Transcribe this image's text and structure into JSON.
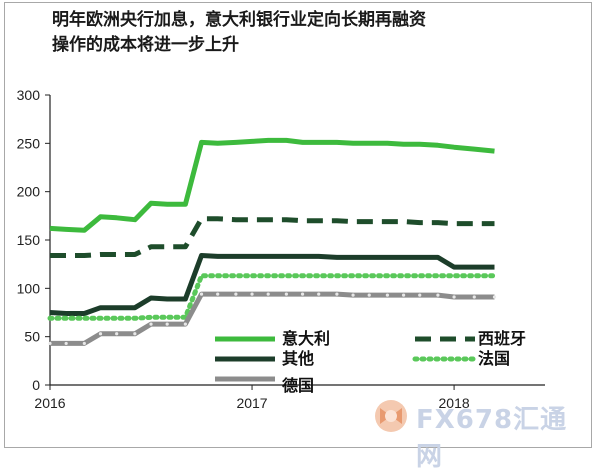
{
  "chart_data": {
    "type": "line",
    "title_lines": [
      "明年欧洲央行加息，意大利银行业定向长期再融资",
      "操作的成本将进一步上升"
    ],
    "xlabel": "",
    "ylabel": "",
    "ylim": [
      0,
      300
    ],
    "y_ticks": [
      0,
      50,
      100,
      150,
      200,
      250,
      300
    ],
    "xlim": [
      2016,
      2018.45
    ],
    "x_ticks": [
      {
        "value": 2016,
        "label": "2016"
      },
      {
        "value": 2017,
        "label": "2017"
      },
      {
        "value": 2018,
        "label": "2018"
      }
    ],
    "grid": false,
    "legend": "bottom-inside",
    "series": [
      {
        "name": "意大利",
        "color": "#3dba3d",
        "style": "solid",
        "points": [
          [
            2016.0,
            162
          ],
          [
            2016.08,
            161
          ],
          [
            2016.17,
            160
          ],
          [
            2016.25,
            174
          ],
          [
            2016.33,
            173
          ],
          [
            2016.42,
            171
          ],
          [
            2016.5,
            188
          ],
          [
            2016.58,
            187
          ],
          [
            2016.67,
            187
          ],
          [
            2016.75,
            251
          ],
          [
            2016.83,
            250
          ],
          [
            2016.92,
            251
          ],
          [
            2017.0,
            252
          ],
          [
            2017.08,
            253
          ],
          [
            2017.17,
            253
          ],
          [
            2017.25,
            251
          ],
          [
            2017.33,
            251
          ],
          [
            2017.42,
            251
          ],
          [
            2017.5,
            250
          ],
          [
            2017.58,
            250
          ],
          [
            2017.67,
            250
          ],
          [
            2017.75,
            249
          ],
          [
            2017.83,
            249
          ],
          [
            2017.92,
            248
          ],
          [
            2018.0,
            246
          ],
          [
            2018.1,
            244
          ],
          [
            2018.2,
            242
          ]
        ]
      },
      {
        "name": "西班牙",
        "color": "#1e4d2b",
        "style": "dashed",
        "points": [
          [
            2016.0,
            134
          ],
          [
            2016.08,
            134
          ],
          [
            2016.17,
            134
          ],
          [
            2016.25,
            135
          ],
          [
            2016.33,
            135
          ],
          [
            2016.42,
            135
          ],
          [
            2016.5,
            143
          ],
          [
            2016.58,
            143
          ],
          [
            2016.67,
            143
          ],
          [
            2016.75,
            172
          ],
          [
            2016.83,
            172
          ],
          [
            2016.92,
            171
          ],
          [
            2017.0,
            171
          ],
          [
            2017.08,
            171
          ],
          [
            2017.17,
            171
          ],
          [
            2017.25,
            170
          ],
          [
            2017.33,
            170
          ],
          [
            2017.42,
            170
          ],
          [
            2017.5,
            169
          ],
          [
            2017.58,
            169
          ],
          [
            2017.67,
            169
          ],
          [
            2017.75,
            169
          ],
          [
            2017.83,
            168
          ],
          [
            2017.92,
            168
          ],
          [
            2018.0,
            167
          ],
          [
            2018.1,
            167
          ],
          [
            2018.2,
            167
          ]
        ]
      },
      {
        "name": "其他",
        "color": "#1c3d2a",
        "style": "solid",
        "points": [
          [
            2016.0,
            75
          ],
          [
            2016.08,
            74
          ],
          [
            2016.17,
            74
          ],
          [
            2016.25,
            80
          ],
          [
            2016.33,
            80
          ],
          [
            2016.42,
            80
          ],
          [
            2016.5,
            90
          ],
          [
            2016.58,
            89
          ],
          [
            2016.67,
            89
          ],
          [
            2016.75,
            134
          ],
          [
            2016.83,
            133
          ],
          [
            2016.92,
            133
          ],
          [
            2017.0,
            133
          ],
          [
            2017.08,
            133
          ],
          [
            2017.17,
            133
          ],
          [
            2017.25,
            133
          ],
          [
            2017.33,
            133
          ],
          [
            2017.42,
            132
          ],
          [
            2017.5,
            132
          ],
          [
            2017.58,
            132
          ],
          [
            2017.67,
            132
          ],
          [
            2017.75,
            132
          ],
          [
            2017.83,
            132
          ],
          [
            2017.92,
            132
          ],
          [
            2018.0,
            122
          ],
          [
            2018.1,
            122
          ],
          [
            2018.2,
            122
          ]
        ]
      },
      {
        "name": "法国",
        "color": "#5ac85a",
        "style": "dotted",
        "points": [
          [
            2016.0,
            69
          ],
          [
            2016.08,
            69
          ],
          [
            2016.17,
            69
          ],
          [
            2016.25,
            69
          ],
          [
            2016.33,
            69
          ],
          [
            2016.42,
            69
          ],
          [
            2016.5,
            70
          ],
          [
            2016.58,
            70
          ],
          [
            2016.67,
            70
          ],
          [
            2016.75,
            113
          ],
          [
            2016.83,
            113
          ],
          [
            2016.92,
            113
          ],
          [
            2017.0,
            113
          ],
          [
            2017.08,
            113
          ],
          [
            2017.17,
            113
          ],
          [
            2017.25,
            113
          ],
          [
            2017.33,
            113
          ],
          [
            2017.42,
            113
          ],
          [
            2017.5,
            113
          ],
          [
            2017.58,
            113
          ],
          [
            2017.67,
            113
          ],
          [
            2017.75,
            113
          ],
          [
            2017.83,
            113
          ],
          [
            2017.92,
            113
          ],
          [
            2018.0,
            113
          ],
          [
            2018.1,
            113
          ],
          [
            2018.2,
            113
          ]
        ]
      },
      {
        "name": "德国",
        "color": "#8c8c8c",
        "style": "solid-marker",
        "points": [
          [
            2016.0,
            43
          ],
          [
            2016.08,
            43
          ],
          [
            2016.17,
            43
          ],
          [
            2016.25,
            53
          ],
          [
            2016.33,
            53
          ],
          [
            2016.42,
            53
          ],
          [
            2016.5,
            63
          ],
          [
            2016.58,
            63
          ],
          [
            2016.67,
            63
          ],
          [
            2016.75,
            94
          ],
          [
            2016.83,
            94
          ],
          [
            2016.92,
            94
          ],
          [
            2017.0,
            94
          ],
          [
            2017.08,
            94
          ],
          [
            2017.17,
            94
          ],
          [
            2017.25,
            94
          ],
          [
            2017.33,
            94
          ],
          [
            2017.42,
            94
          ],
          [
            2017.5,
            93
          ],
          [
            2017.58,
            93
          ],
          [
            2017.67,
            93
          ],
          [
            2017.75,
            93
          ],
          [
            2017.83,
            93
          ],
          [
            2017.92,
            93
          ],
          [
            2018.0,
            91
          ],
          [
            2018.1,
            91
          ],
          [
            2018.2,
            91
          ]
        ]
      }
    ]
  },
  "watermark": {
    "text": "FX678汇通网"
  }
}
